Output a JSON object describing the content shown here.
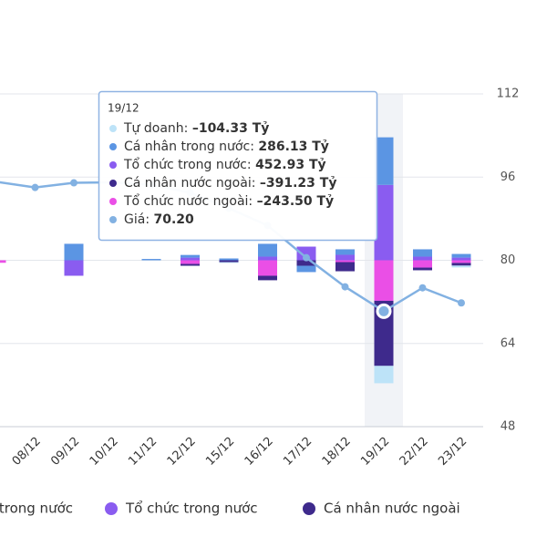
{
  "chart_data": {
    "type": "bar",
    "categories": [
      null,
      "08/12",
      "09/12",
      "10/12",
      "11/12",
      "12/12",
      "15/12",
      "16/12",
      "17/12",
      "18/12",
      "19/12",
      "22/12",
      "23/12"
    ],
    "ylim": [
      -1000,
      1000
    ],
    "y2lim": [
      48,
      112
    ],
    "y2ticks": [
      48,
      64,
      80,
      96,
      112
    ],
    "grid": true,
    "series": [
      {
        "name": "Tự doanh",
        "color": "#bde3f8",
        "values": [
          0,
          0,
          0,
          0,
          0,
          0,
          -5,
          0,
          0,
          0,
          -104.33,
          0,
          -11
        ]
      },
      {
        "name": "Cá nhân trong nước",
        "color": "#5b95e3",
        "values": [
          0,
          0,
          99,
          0,
          8,
          16,
          11,
          77,
          -38,
          33,
          286.13,
          44,
          22
        ]
      },
      {
        "name": "Tổ chức trong nước",
        "color": "#8a5cf0",
        "values": [
          0,
          0,
          -93,
          0,
          0,
          16,
          0,
          22,
          82,
          33,
          452.93,
          22,
          16
        ]
      },
      {
        "name": "Cá nhân nước ngoài",
        "color": "#3e2a8c",
        "values": [
          0,
          0,
          0,
          0,
          0,
          -11,
          -11,
          -27,
          -33,
          -55,
          -391.23,
          -16,
          -16
        ]
      },
      {
        "name": "Tổ chức nước ngoài",
        "color": "#ea4fe6",
        "values": [
          -15,
          0,
          0,
          0,
          0,
          -22,
          0,
          -93,
          0,
          -11,
          -243.5,
          -44,
          -16
        ]
      },
      {
        "name": "Giá",
        "type": "line",
        "axis": "y2",
        "color": "#82b1e2",
        "values": [
          95.1,
          94.0,
          94.9,
          95.0,
          94.5,
          93.0,
          90.0,
          86.7,
          80.5,
          74.9,
          70.2,
          74.7,
          71.8
        ]
      }
    ],
    "tooltip": {
      "category": "19/12",
      "labels": [
        "–104.33 Tỷ",
        "286.13 Tỷ",
        "452.93 Tỷ",
        "–391.23 Tỷ",
        "–243.50 Tỷ",
        "70.20"
      ]
    }
  }
}
